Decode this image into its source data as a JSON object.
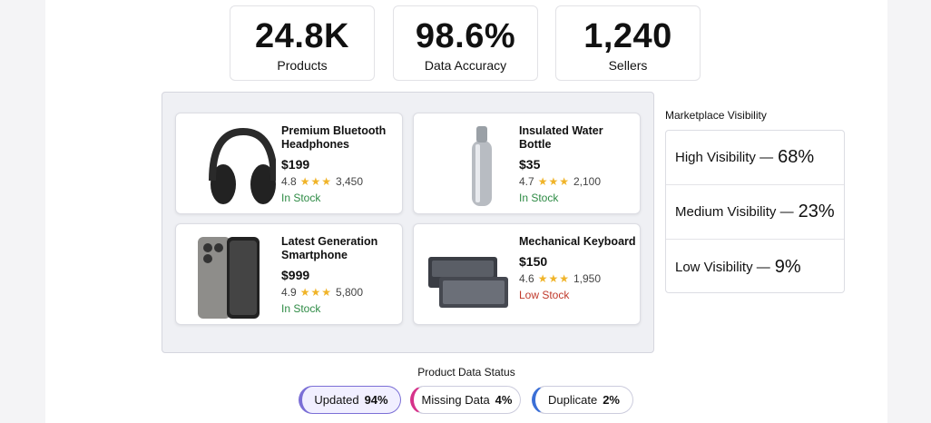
{
  "stats": [
    {
      "value": "24.8K",
      "label": "Products"
    },
    {
      "value": "98.6%",
      "label": "Data Accuracy"
    },
    {
      "value": "1,240",
      "label": "Sellers"
    }
  ],
  "products": [
    {
      "name": "Premium Bluetooth Headphones",
      "price": "$199",
      "rating": "4.8",
      "reviews": "3,450",
      "stock": "In Stock",
      "stock_color": "#2e8b45"
    },
    {
      "name": "Insulated Water Bottle",
      "price": "$35",
      "rating": "4.7",
      "reviews": "2,100",
      "stock": "In Stock",
      "stock_color": "#2e8b45"
    },
    {
      "name": "Latest Generation Smartphone",
      "price": "$999",
      "rating": "4.9",
      "reviews": "5,800",
      "stock": "In Stock",
      "stock_color": "#2e8b45"
    },
    {
      "name": "Mechanical Keyboard",
      "price": "$150",
      "rating": "4.6",
      "reviews": "1,950",
      "stock": "Low Stock",
      "stock_color": "#c0392b"
    }
  ],
  "visibility": {
    "title": "Marketplace Visibility",
    "items": [
      {
        "label": "High Visibility —",
        "value": "68%"
      },
      {
        "label": "Medium Visibility —",
        "value": "23%"
      },
      {
        "label": "Low Visibility —",
        "value": "9%"
      }
    ]
  },
  "status": {
    "title": "Product Data Status",
    "items": [
      {
        "label": "Updated",
        "value": "94%",
        "color": "#7b6fd6"
      },
      {
        "label": "Missing Data",
        "value": "4%",
        "color": "#d6338a"
      },
      {
        "label": "Duplicate",
        "value": "2%",
        "color": "#3b6fd6"
      }
    ]
  }
}
